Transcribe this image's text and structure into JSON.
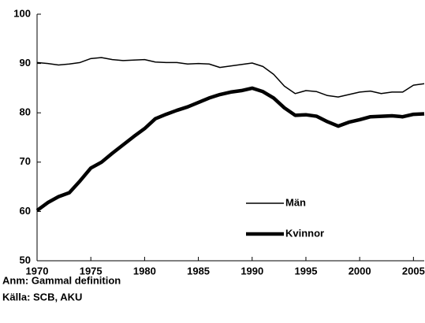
{
  "chart_data": {
    "type": "line",
    "x": [
      1970,
      1971,
      1972,
      1973,
      1974,
      1975,
      1976,
      1977,
      1978,
      1979,
      1980,
      1981,
      1982,
      1983,
      1984,
      1985,
      1986,
      1987,
      1988,
      1989,
      1990,
      1991,
      1992,
      1993,
      1994,
      1995,
      1996,
      1997,
      1998,
      1999,
      2000,
      2001,
      2002,
      2003,
      2004,
      2005,
      2006
    ],
    "series": [
      {
        "name": "Män",
        "color": "#000000",
        "width": 1.5,
        "values": [
          90.2,
          90.0,
          89.7,
          89.9,
          90.2,
          91.0,
          91.2,
          90.8,
          90.6,
          90.7,
          90.8,
          90.3,
          90.2,
          90.2,
          89.9,
          90.0,
          89.9,
          89.2,
          89.5,
          89.8,
          90.1,
          89.4,
          87.8,
          85.4,
          83.9,
          84.5,
          84.3,
          83.5,
          83.2,
          83.7,
          84.2,
          84.4,
          83.9,
          84.2,
          84.2,
          85.6,
          85.9
        ]
      },
      {
        "name": "Kvinnor",
        "color": "#000000",
        "width": 4.5,
        "values": [
          60.2,
          61.8,
          63.0,
          63.8,
          66.2,
          68.8,
          70.0,
          71.8,
          73.5,
          75.2,
          76.8,
          78.8,
          79.7,
          80.5,
          81.2,
          82.1,
          83.0,
          83.7,
          84.2,
          84.5,
          85.0,
          84.3,
          83.0,
          81.0,
          79.5,
          79.6,
          79.3,
          78.2,
          77.3,
          78.1,
          78.6,
          79.2,
          79.3,
          79.4,
          79.2,
          79.7,
          79.8
        ]
      }
    ],
    "xlim": [
      1970,
      2006
    ],
    "xticks": [
      1970,
      1975,
      1980,
      1985,
      1990,
      1995,
      2000,
      2005
    ],
    "ylim": [
      50,
      100
    ],
    "yticks": [
      50,
      60,
      70,
      80,
      90,
      100
    ],
    "grid": false,
    "notes": [
      "Anm: Gammal definition",
      "Källa: SCB, AKU"
    ]
  }
}
